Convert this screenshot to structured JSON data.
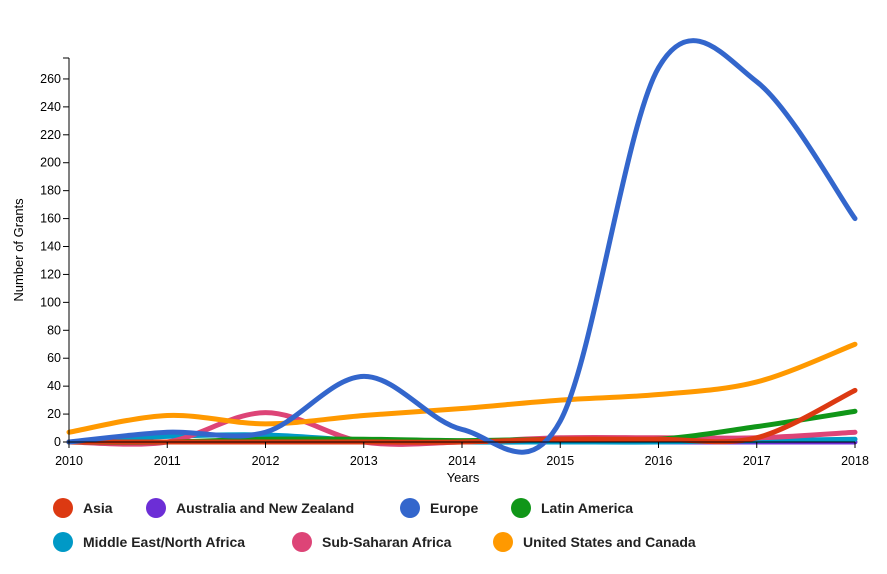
{
  "chart_data": {
    "type": "line",
    "title": "",
    "xlabel": "Years",
    "ylabel": "Number of Grants",
    "x": [
      2010,
      2011,
      2012,
      2013,
      2014,
      2015,
      2016,
      2017,
      2018
    ],
    "x_tick_labels": [
      "2010",
      "2011",
      "2012",
      "2013",
      "2014",
      "2015",
      "2016",
      "2017",
      "2018"
    ],
    "y_tick_labels": [
      "0",
      "20",
      "40",
      "60",
      "80",
      "100",
      "120",
      "140",
      "160",
      "180",
      "200",
      "220",
      "240",
      "260"
    ],
    "ylim": [
      0,
      275
    ],
    "xlim": [
      2010,
      2018
    ],
    "grid": false,
    "legend_position": "bottom",
    "series": [
      {
        "name": "Asia",
        "color": "#dc3912",
        "values": [
          0,
          0,
          0,
          0,
          0,
          2,
          2,
          3,
          37
        ]
      },
      {
        "name": "Australia and New Zealand",
        "color": "#6c2ed6",
        "values": [
          0,
          0,
          0,
          0,
          0,
          0,
          0,
          0,
          0
        ]
      },
      {
        "name": "Europe",
        "color": "#3366cc",
        "values": [
          0,
          7,
          7,
          47,
          9,
          15,
          268,
          258,
          160
        ]
      },
      {
        "name": "Latin America",
        "color": "#109618",
        "values": [
          0,
          0,
          2,
          2,
          1,
          2,
          2,
          11,
          22
        ]
      },
      {
        "name": "Middle East/North Africa",
        "color": "#0099c6",
        "values": [
          0,
          4,
          5,
          1,
          0,
          0,
          0,
          1,
          2
        ]
      },
      {
        "name": "Sub-Saharan Africa",
        "color": "#dd4477",
        "values": [
          0,
          0,
          21,
          0,
          0,
          3,
          3,
          3,
          7
        ]
      },
      {
        "name": "United States and Canada",
        "color": "#ff9900",
        "values": [
          7,
          19,
          13,
          19,
          24,
          30,
          34,
          43,
          70
        ]
      }
    ]
  }
}
